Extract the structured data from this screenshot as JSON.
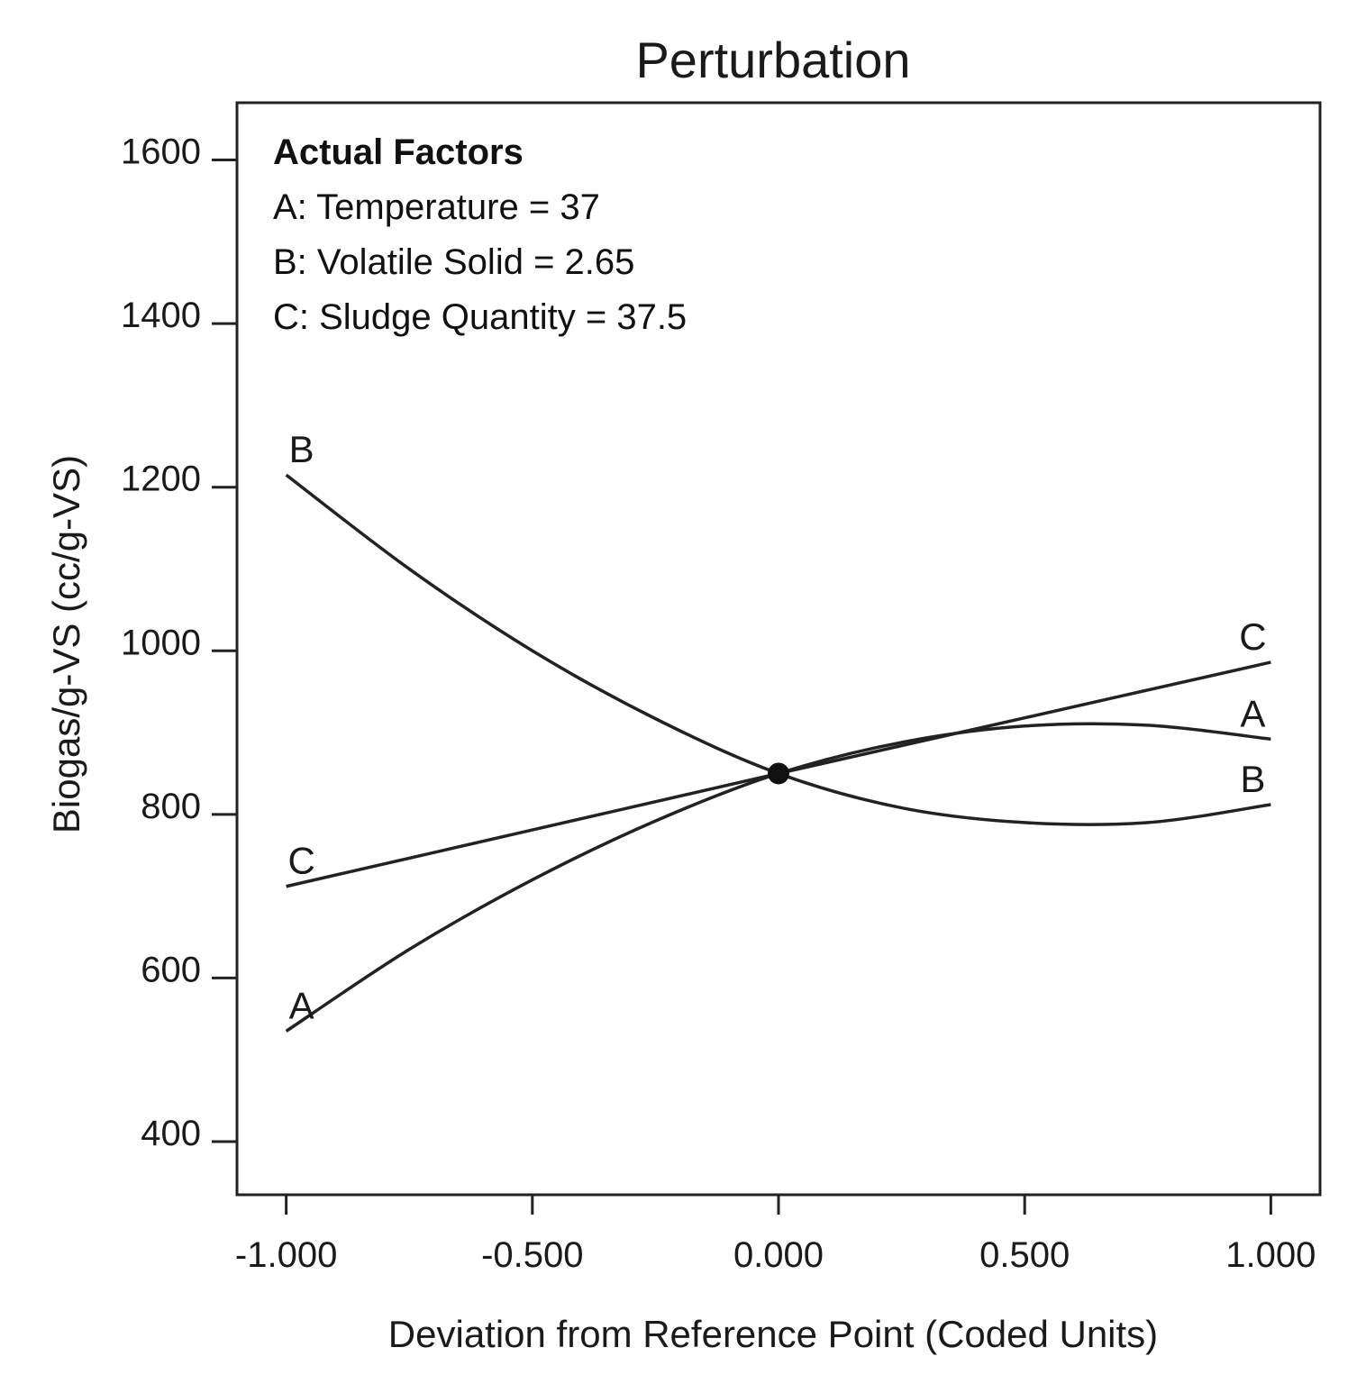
{
  "chart_data": {
    "type": "line",
    "title": "Perturbation",
    "xlabel": "Deviation from Reference Point (Coded Units)",
    "ylabel": "Biogas/g-VS (cc/g-VS)",
    "xlim": [
      -1.1,
      1.1
    ],
    "ylim": [
      335,
      1670
    ],
    "xticks": [
      -1.0,
      -0.5,
      0.0,
      0.5,
      1.0
    ],
    "xtick_labels": [
      "-1.000",
      "-0.500",
      "0.000",
      "0.500",
      "1.000"
    ],
    "yticks": [
      400,
      600,
      800,
      1000,
      1200,
      1400,
      1600
    ],
    "ytick_labels": [
      "400",
      "600",
      "800",
      "1000",
      "1200",
      "1400",
      "1600"
    ],
    "legend": {
      "heading": "Actual Factors",
      "lines": [
        "A: Temperature = 37",
        "B: Volatile Solid = 2.65",
        "C: Sludge Quantity = 37.5"
      ],
      "placement": "top-left"
    },
    "reference_point": {
      "x": 0.0,
      "y": 850
    },
    "series": [
      {
        "name": "A",
        "x": [
          -1.0,
          -0.75,
          -0.5,
          -0.25,
          0.0,
          0.25,
          0.5,
          0.75,
          1.0
        ],
        "y": [
          535,
          635,
          720,
          792,
          850,
          888,
          908,
          909,
          892
        ]
      },
      {
        "name": "B",
        "x": [
          -1.0,
          -0.75,
          -0.5,
          -0.25,
          0.0,
          0.25,
          0.5,
          0.75,
          1.0
        ],
        "y": [
          1215,
          1100,
          1000,
          917,
          850,
          808,
          790,
          790,
          812
        ]
      },
      {
        "name": "C",
        "x": [
          -1.0,
          -0.5,
          0.0,
          0.5,
          1.0
        ],
        "y": [
          712,
          781,
          850,
          918,
          986
        ]
      }
    ]
  }
}
